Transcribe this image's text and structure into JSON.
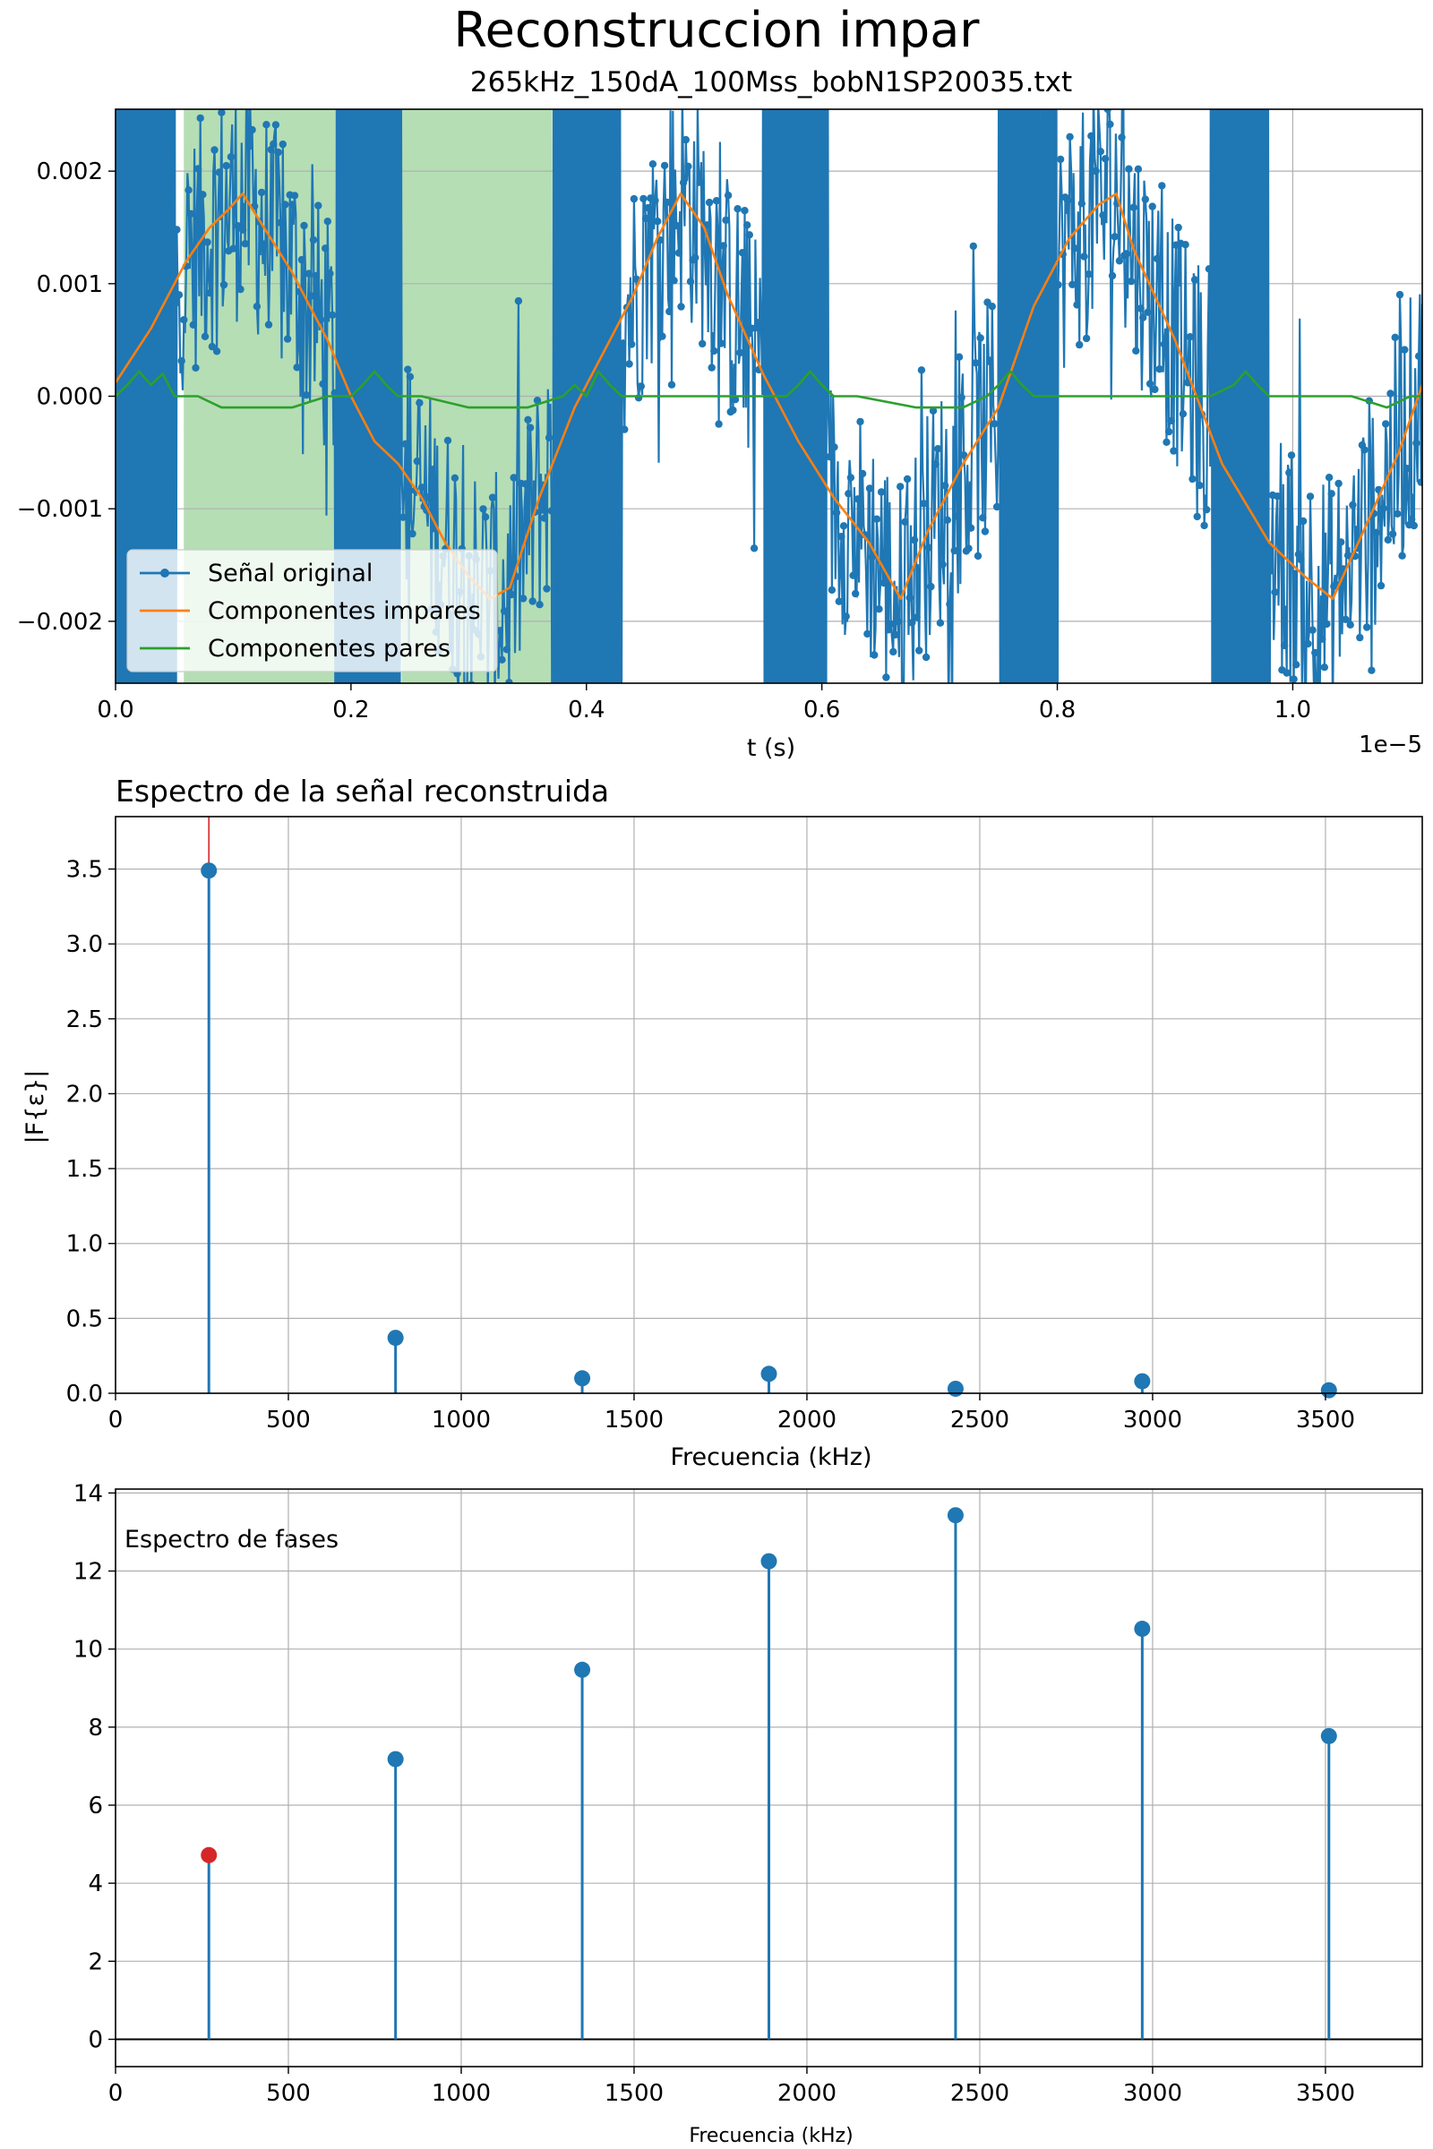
{
  "figure": {
    "title": "Reconstruccion impar",
    "background": "#ffffff"
  },
  "colors": {
    "original": "#1f77b4",
    "odd": "#ff7f0e",
    "even": "#2ca02c",
    "shade": "#2ca02c",
    "fundamental": "#d62728",
    "grid": "#b0b0b0"
  },
  "chart_data": [
    {
      "id": "signal",
      "type": "line",
      "title": "265kHz_150dA_100Mss_bobN1SP20035.txt",
      "xlabel": "t (s)",
      "ylabel": "",
      "x_unit_multiplier": "1e−5",
      "xlim": [
        0.0,
        1.11
      ],
      "ylim": [
        -0.00255,
        0.00255
      ],
      "grid": true,
      "x_ticks": [
        0.0,
        0.2,
        0.4,
        0.6,
        0.8,
        1.0
      ],
      "x_tick_labels": [
        "0.0",
        "0.2",
        "0.4",
        "0.6",
        "0.8",
        "1.0"
      ],
      "y_ticks": [
        -0.002,
        -0.001,
        0.0,
        0.001,
        0.002
      ],
      "y_tick_labels": [
        "−0.002",
        "−0.001",
        "0.000",
        "0.001",
        "0.002"
      ],
      "shaded_regions": [
        [
          0.058,
          0.187
        ],
        [
          0.243,
          0.371
        ]
      ],
      "dense_bands": [
        [
          0.0,
          0.052
        ],
        [
          0.187,
          0.243
        ],
        [
          0.371,
          0.43
        ],
        [
          0.55,
          0.605
        ],
        [
          0.75,
          0.8
        ],
        [
          0.93,
          0.98
        ]
      ],
      "legend": {
        "position": "lower-left",
        "entries": [
          "Señal original",
          "Componentes impares",
          "Componentes pares"
        ]
      },
      "series": [
        {
          "name": "Componentes impares",
          "color": "#ff7f0e",
          "x": [
            0.0,
            0.03,
            0.06,
            0.08,
            0.095,
            0.108,
            0.12,
            0.15,
            0.18,
            0.2,
            0.22,
            0.24,
            0.26,
            0.28,
            0.3,
            0.318,
            0.335,
            0.36,
            0.39,
            0.42,
            0.44,
            0.46,
            0.48,
            0.5,
            0.52,
            0.55,
            0.58,
            0.61,
            0.64,
            0.667,
            0.69,
            0.72,
            0.75,
            0.78,
            0.81,
            0.835,
            0.85,
            0.865,
            0.9,
            0.94,
            0.98,
            1.01,
            1.034,
            1.06,
            1.09,
            1.11
          ],
          "y": [
            0.00012,
            0.0006,
            0.0012,
            0.0015,
            0.00165,
            0.0018,
            0.0016,
            0.0011,
            0.0005,
            0.0,
            -0.0004,
            -0.0006,
            -0.0009,
            -0.0013,
            -0.0016,
            -0.0018,
            -0.0017,
            -0.0009,
            -0.0001,
            0.0005,
            0.0009,
            0.0014,
            0.0018,
            0.0015,
            0.0009,
            0.0002,
            -0.0004,
            -0.0009,
            -0.0013,
            -0.0018,
            -0.0012,
            -0.0006,
            -0.0001,
            0.0008,
            0.0014,
            0.0017,
            0.0018,
            0.0013,
            0.0005,
            -0.0006,
            -0.0013,
            -0.0016,
            -0.0018,
            -0.0012,
            -0.0005,
            0.0001
          ]
        },
        {
          "name": "Componentes pares",
          "color": "#2ca02c",
          "x": [
            0.0,
            0.01,
            0.02,
            0.03,
            0.04,
            0.05,
            0.07,
            0.09,
            0.12,
            0.15,
            0.18,
            0.2,
            0.21,
            0.22,
            0.23,
            0.24,
            0.26,
            0.3,
            0.35,
            0.38,
            0.39,
            0.4,
            0.41,
            0.42,
            0.43,
            0.45,
            0.5,
            0.55,
            0.57,
            0.58,
            0.59,
            0.6,
            0.61,
            0.63,
            0.68,
            0.72,
            0.74,
            0.75,
            0.76,
            0.77,
            0.78,
            0.8,
            0.85,
            0.9,
            0.93,
            0.95,
            0.96,
            0.97,
            0.98,
            1.0,
            1.05,
            1.08,
            1.1,
            1.11
          ],
          "y": [
            0.0,
            0.0001,
            0.00022,
            0.0001,
            0.0002,
            0.0,
            0.0,
            -0.0001,
            -0.0001,
            -0.0001,
            0.0,
            0.0,
            0.0001,
            0.00022,
            0.0001,
            0.0,
            0.0,
            -0.0001,
            -0.0001,
            0.0,
            0.0001,
            0.0,
            0.00022,
            0.0001,
            0.0,
            0.0,
            0.0,
            0.0,
            0.0,
            0.0001,
            0.00022,
            0.0001,
            0.0,
            0.0,
            -0.0001,
            -0.0001,
            0.0,
            0.0001,
            0.00022,
            0.0001,
            0.0,
            0.0,
            0.0,
            0.0,
            0.0,
            0.0001,
            0.00022,
            0.0001,
            0.0,
            0.0,
            0.0,
            -0.0001,
            0.0,
            0.0
          ]
        }
      ]
    },
    {
      "id": "magnitude",
      "type": "bar",
      "title": "Espectro de la señal reconstruida",
      "xlabel": "Frecuencia (kHz)",
      "ylabel": "|F{ε}|",
      "xlim": [
        0,
        3780
      ],
      "ylim": [
        0,
        3.85
      ],
      "grid": true,
      "x_ticks": [
        0,
        500,
        1000,
        1500,
        2000,
        2500,
        3000,
        3500
      ],
      "y_ticks": [
        0.0,
        0.5,
        1.0,
        1.5,
        2.0,
        2.5,
        3.0,
        3.5
      ],
      "y_tick_labels": [
        "0.0",
        "0.5",
        "1.0",
        "1.5",
        "2.0",
        "2.5",
        "3.0",
        "3.5"
      ],
      "fundamental_line": 270,
      "x": [
        270,
        810,
        1350,
        1890,
        2430,
        2970,
        3510
      ],
      "values": [
        3.49,
        0.37,
        0.1,
        0.13,
        0.03,
        0.08,
        0.02
      ]
    },
    {
      "id": "phase",
      "type": "bar",
      "title": "Espectro de fases",
      "xlabel": "Frecuencia (kHz)",
      "ylabel": "",
      "xlim": [
        0,
        3780
      ],
      "ylim": [
        -0.7,
        14.1
      ],
      "grid": true,
      "x_ticks": [
        0,
        500,
        1000,
        1500,
        2000,
        2500,
        3000,
        3500
      ],
      "y_ticks": [
        0,
        2,
        4,
        6,
        8,
        10,
        12,
        14
      ],
      "x": [
        270,
        810,
        1350,
        1890,
        2430,
        2970,
        3510
      ],
      "values": [
        4.72,
        7.18,
        9.47,
        12.25,
        13.43,
        10.52,
        7.77
      ],
      "highlight_index": 0
    }
  ]
}
